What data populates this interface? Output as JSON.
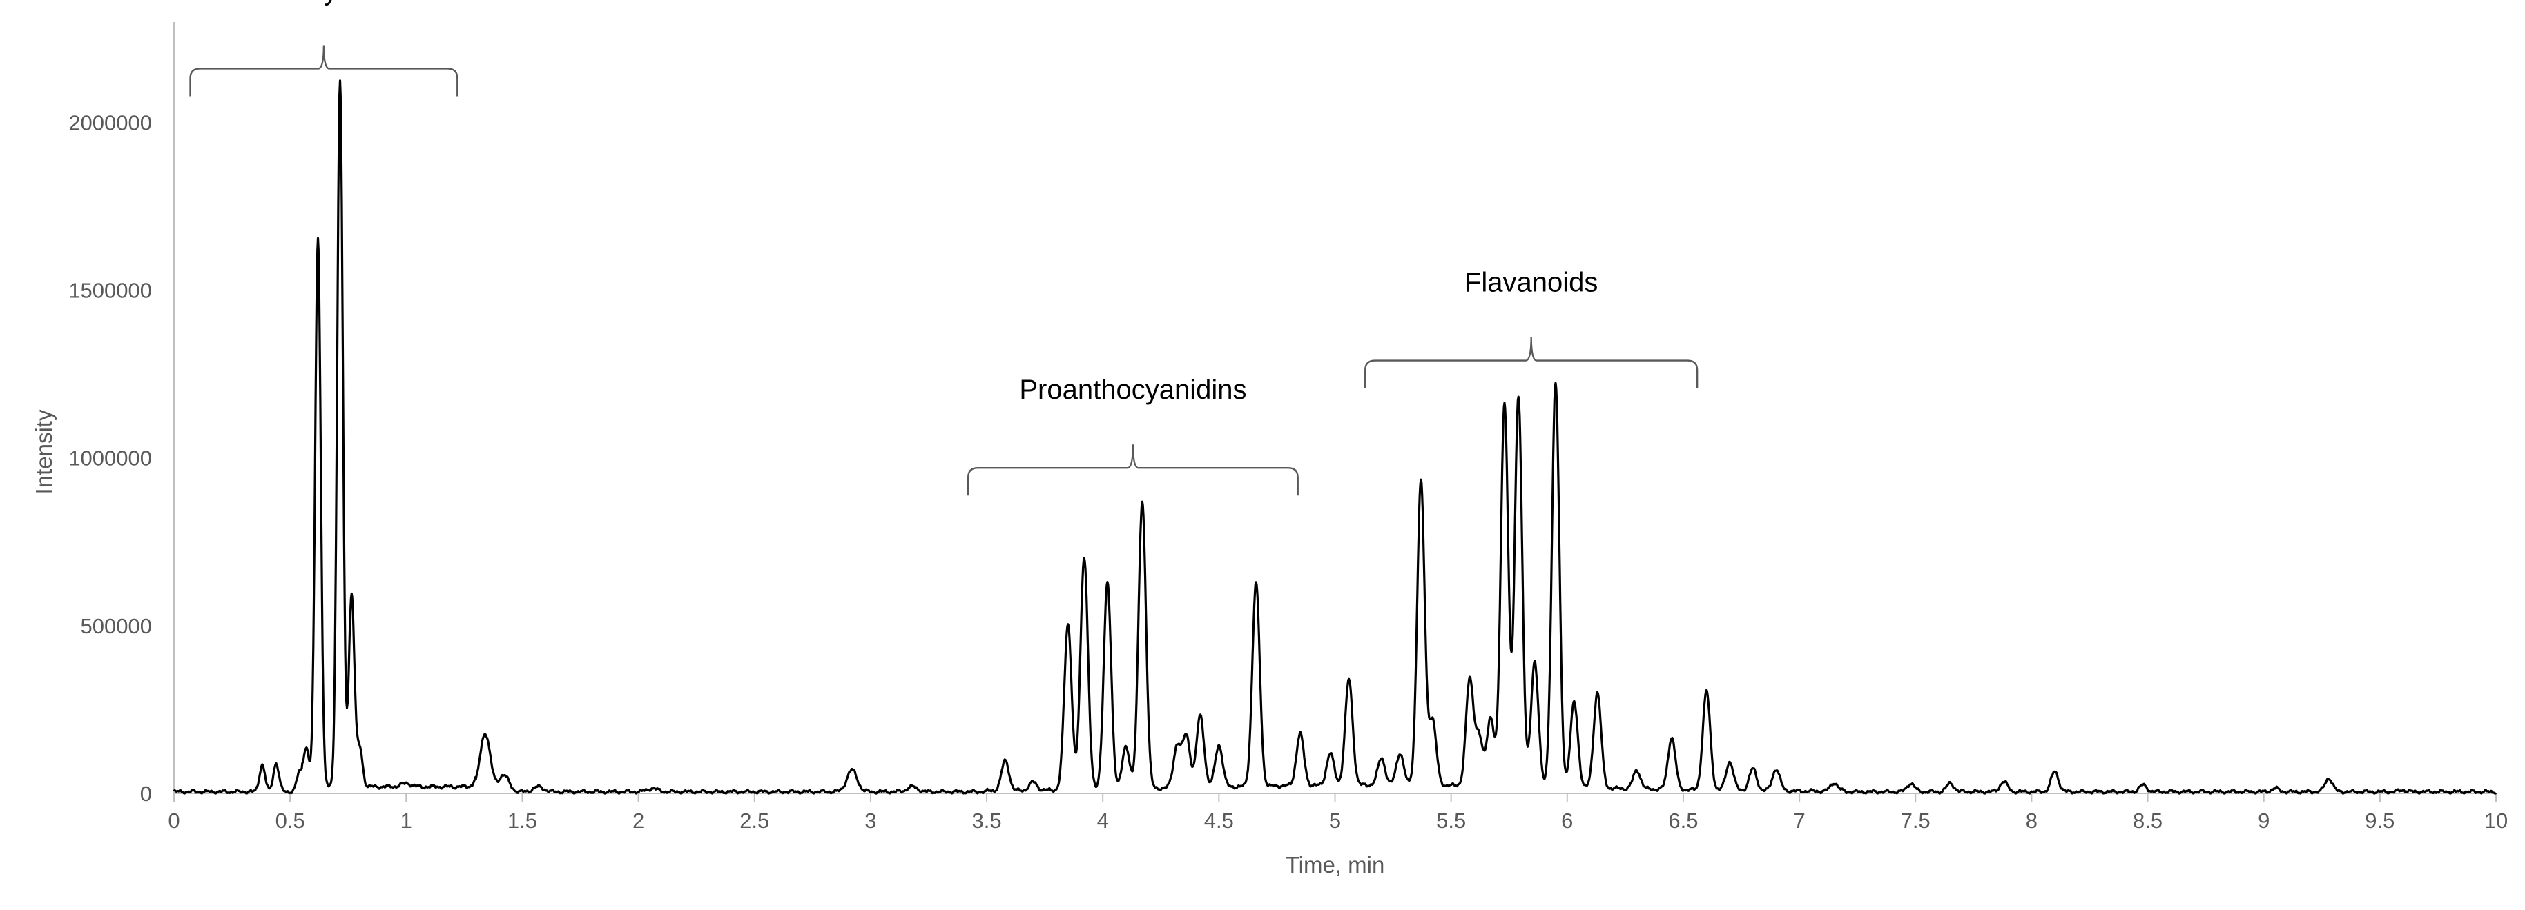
{
  "chart_data": {
    "type": "line",
    "title": "",
    "xlabel": "Time, min",
    "ylabel": "Intensity",
    "xlim": [
      0,
      10
    ],
    "ylim": [
      0,
      2200000
    ],
    "x_ticks": [
      0,
      0.5,
      1,
      1.5,
      2,
      2.5,
      3,
      3.5,
      4,
      4.5,
      5,
      5.5,
      6,
      6.5,
      7,
      7.5,
      8,
      8.5,
      9,
      9.5,
      10
    ],
    "x_tick_labels": [
      "0",
      "0.5",
      "1",
      "1.5",
      "2",
      "2.5",
      "3",
      "3.5",
      "4",
      "4.5",
      "5",
      "5.5",
      "6",
      "6.5",
      "7",
      "7.5",
      "8",
      "8.5",
      "9",
      "9.5",
      "10"
    ],
    "y_ticks": [
      0,
      500000,
      1000000,
      1500000,
      2000000
    ],
    "y_tick_labels": [
      "0",
      "500000",
      "1000000",
      "1500000",
      "2000000"
    ],
    "grid": false,
    "legend": "none",
    "line_color": "#000000",
    "baseline": 5000,
    "peaks": [
      {
        "x": 0.38,
        "y": 85000
      },
      {
        "x": 0.44,
        "y": 90000
      },
      {
        "x": 0.54,
        "y": 60000
      },
      {
        "x": 0.57,
        "y": 120000
      },
      {
        "x": 0.62,
        "y": 1640000
      },
      {
        "x": 0.715,
        "y": 2110000
      },
      {
        "x": 0.765,
        "y": 580000
      },
      {
        "x": 0.8,
        "y": 120000
      },
      {
        "x": 1.0,
        "y": 15000
      },
      {
        "x": 1.34,
        "y": 180000
      },
      {
        "x": 1.42,
        "y": 55000
      },
      {
        "x": 1.57,
        "y": 20000
      },
      {
        "x": 2.06,
        "y": 15000
      },
      {
        "x": 2.92,
        "y": 70000
      },
      {
        "x": 3.18,
        "y": 20000
      },
      {
        "x": 3.58,
        "y": 95000
      },
      {
        "x": 3.7,
        "y": 30000
      },
      {
        "x": 3.85,
        "y": 500000
      },
      {
        "x": 3.92,
        "y": 700000
      },
      {
        "x": 4.02,
        "y": 620000
      },
      {
        "x": 4.1,
        "y": 130000
      },
      {
        "x": 4.17,
        "y": 860000
      },
      {
        "x": 4.32,
        "y": 130000
      },
      {
        "x": 4.36,
        "y": 160000
      },
      {
        "x": 4.42,
        "y": 220000
      },
      {
        "x": 4.5,
        "y": 130000
      },
      {
        "x": 4.66,
        "y": 610000
      },
      {
        "x": 4.85,
        "y": 160000
      },
      {
        "x": 4.98,
        "y": 100000
      },
      {
        "x": 5.06,
        "y": 320000
      },
      {
        "x": 5.2,
        "y": 85000
      },
      {
        "x": 5.28,
        "y": 100000
      },
      {
        "x": 5.37,
        "y": 910000
      },
      {
        "x": 5.42,
        "y": 200000
      },
      {
        "x": 5.58,
        "y": 320000
      },
      {
        "x": 5.62,
        "y": 150000
      },
      {
        "x": 5.67,
        "y": 210000
      },
      {
        "x": 5.73,
        "y": 1150000
      },
      {
        "x": 5.79,
        "y": 1170000
      },
      {
        "x": 5.86,
        "y": 380000
      },
      {
        "x": 5.95,
        "y": 1210000
      },
      {
        "x": 6.03,
        "y": 260000
      },
      {
        "x": 6.13,
        "y": 290000
      },
      {
        "x": 6.3,
        "y": 60000
      },
      {
        "x": 6.45,
        "y": 160000
      },
      {
        "x": 6.6,
        "y": 300000
      },
      {
        "x": 6.7,
        "y": 90000
      },
      {
        "x": 6.8,
        "y": 70000
      },
      {
        "x": 6.9,
        "y": 70000
      },
      {
        "x": 7.15,
        "y": 30000
      },
      {
        "x": 7.48,
        "y": 30000
      },
      {
        "x": 7.65,
        "y": 30000
      },
      {
        "x": 7.88,
        "y": 35000
      },
      {
        "x": 8.1,
        "y": 65000
      },
      {
        "x": 8.48,
        "y": 25000
      },
      {
        "x": 9.05,
        "y": 15000
      },
      {
        "x": 9.28,
        "y": 45000
      },
      {
        "x": 9.6,
        "y": 10000
      }
    ],
    "annotations": [
      {
        "text": "Carbohydrates",
        "x_start": 0.07,
        "x_end": 1.22,
        "y_level": 2160000
      },
      {
        "text": "Proanthocyanidins",
        "x_start": 3.42,
        "x_end": 4.84,
        "y_level": 970000
      },
      {
        "text": "Flavanoids",
        "x_start": 5.13,
        "x_end": 6.56,
        "y_level": 1290000
      }
    ]
  }
}
